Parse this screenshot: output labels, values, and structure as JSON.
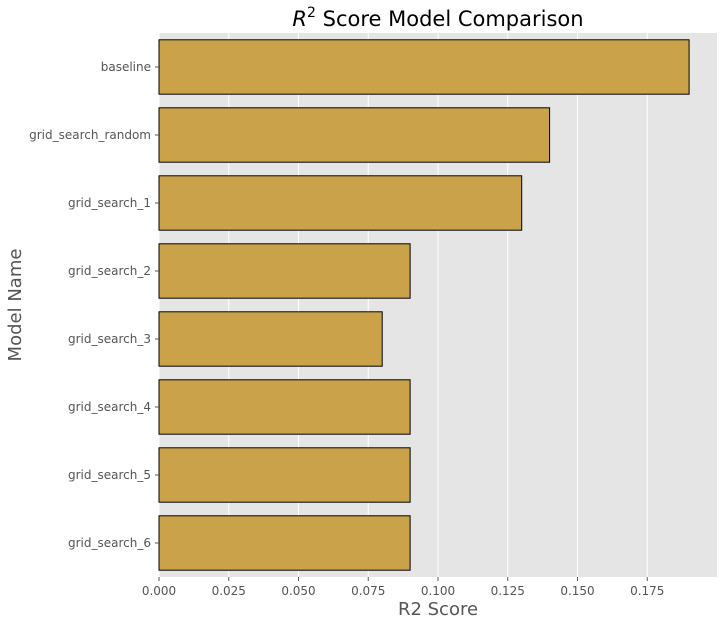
{
  "chart_data": {
    "type": "bar",
    "orientation": "horizontal",
    "title_prefix": "R",
    "title_superscript": "2",
    "title_suffix": " Score Model Comparison",
    "xlabel": "R2 Score",
    "ylabel": "Model Name",
    "categories": [
      "baseline",
      "grid_search_random",
      "grid_search_1",
      "grid_search_2",
      "grid_search_3",
      "grid_search_4",
      "grid_search_5",
      "grid_search_6"
    ],
    "values": [
      0.19,
      0.14,
      0.13,
      0.09,
      0.08,
      0.09,
      0.09,
      0.09
    ],
    "xlim": [
      0,
      0.2
    ],
    "xticks": [
      0.0,
      0.025,
      0.05,
      0.075,
      0.1,
      0.125,
      0.15,
      0.175
    ],
    "xtick_labels": [
      "0.000",
      "0.025",
      "0.050",
      "0.075",
      "0.100",
      "0.125",
      "0.150",
      "0.175"
    ],
    "grid": true,
    "bar_color": "#c9a24a",
    "bar_edge_color": "#000000",
    "background_color": "#e5e5e5"
  }
}
